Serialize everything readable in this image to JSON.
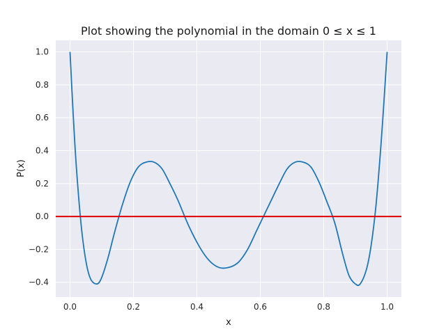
{
  "chart_data": {
    "type": "line",
    "title": "Plot showing the polynomial in the domain 0 ≤ x ≤ 1",
    "xlabel": "x",
    "ylabel": "P(x)",
    "xlim": [
      -0.045,
      1.045
    ],
    "ylim": [
      -0.49,
      1.07
    ],
    "xticks": [
      0.0,
      0.2,
      0.4,
      0.6,
      0.8,
      1.0
    ],
    "xtick_labels": [
      "0.0",
      "0.2",
      "0.4",
      "0.6",
      "0.8",
      "1.0"
    ],
    "yticks": [
      -0.4,
      -0.2,
      0.0,
      0.2,
      0.4,
      0.6,
      0.8,
      1.0
    ],
    "ytick_labels": [
      "−0.4",
      "−0.2",
      "0.0",
      "0.2",
      "0.4",
      "0.6",
      "0.8",
      "1.0"
    ],
    "grid": true,
    "series": [
      {
        "color": "#1f77b4",
        "x": [
          0.0,
          0.01,
          0.02,
          0.035,
          0.05,
          0.065,
          0.085,
          0.1,
          0.12,
          0.14,
          0.165,
          0.19,
          0.215,
          0.24,
          0.265,
          0.29,
          0.315,
          0.34,
          0.375,
          0.41,
          0.44,
          0.47,
          0.5,
          0.53,
          0.56,
          0.59,
          0.625,
          0.66,
          0.685,
          0.71,
          0.735,
          0.76,
          0.785,
          0.81,
          0.835,
          0.86,
          0.88,
          0.9,
          0.915,
          0.935,
          0.95,
          0.965,
          0.98,
          0.99,
          1.0
        ],
        "y": [
          1.0,
          0.62,
          0.3,
          -0.05,
          -0.27,
          -0.38,
          -0.41,
          -0.37,
          -0.25,
          -0.1,
          0.07,
          0.21,
          0.3,
          0.33,
          0.33,
          0.29,
          0.2,
          0.1,
          -0.06,
          -0.19,
          -0.27,
          -0.31,
          -0.31,
          -0.28,
          -0.2,
          -0.08,
          0.06,
          0.2,
          0.29,
          0.33,
          0.33,
          0.3,
          0.21,
          0.09,
          -0.04,
          -0.23,
          -0.36,
          -0.41,
          -0.41,
          -0.32,
          -0.17,
          0.07,
          0.42,
          0.7,
          1.0
        ]
      },
      {
        "color": "#e00000",
        "x": [
          -0.045,
          1.045
        ],
        "y": [
          0.0,
          0.0
        ]
      }
    ]
  }
}
